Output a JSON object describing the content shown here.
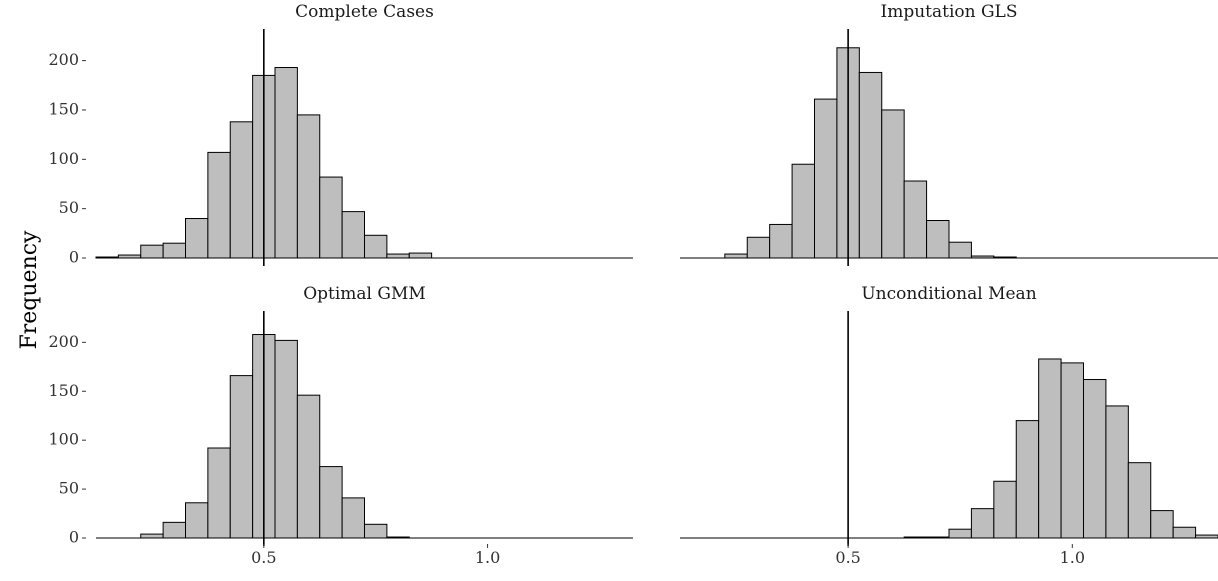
{
  "chart_data": {
    "type": "bar",
    "chart_kind": "histogram-facets",
    "ylabel": "Frequency",
    "x_ticks": [
      0.5,
      1.0
    ],
    "x_tick_labels": [
      "0.5",
      "1.0"
    ],
    "y_ticks": [
      0,
      50,
      100,
      150,
      200
    ],
    "y_tick_labels": [
      "0",
      "50",
      "100",
      "150",
      "200"
    ],
    "xlim": [
      0.125,
      1.325
    ],
    "ylim": [
      0,
      230
    ],
    "bin_width": 0.05,
    "reference_line_x": 0.5,
    "grid": false,
    "colors": {
      "bar_fill": "#bebebe",
      "bar_stroke": "#000000"
    },
    "panels": [
      {
        "title": "Complete Cases",
        "bin_centers": [
          0.15,
          0.2,
          0.25,
          0.3,
          0.35,
          0.4,
          0.45,
          0.5,
          0.55,
          0.6,
          0.65,
          0.7,
          0.75,
          0.8,
          0.85,
          0.9,
          0.95,
          1.0,
          1.05,
          1.1,
          1.15,
          1.2,
          1.25,
          1.3
        ],
        "values": [
          1,
          3,
          13,
          15,
          40,
          107,
          138,
          185,
          193,
          145,
          82,
          47,
          23,
          4,
          5,
          0,
          0,
          0,
          0,
          0,
          0,
          0,
          0,
          0
        ]
      },
      {
        "title": "Imputation GLS",
        "bin_centers": [
          0.15,
          0.2,
          0.25,
          0.3,
          0.35,
          0.4,
          0.45,
          0.5,
          0.55,
          0.6,
          0.65,
          0.7,
          0.75,
          0.8,
          0.85,
          0.9,
          0.95,
          1.0,
          1.05,
          1.1,
          1.15,
          1.2,
          1.25,
          1.3
        ],
        "values": [
          0,
          0,
          4,
          21,
          34,
          95,
          161,
          213,
          188,
          150,
          78,
          38,
          16,
          2,
          1,
          0,
          0,
          0,
          0,
          0,
          0,
          0,
          0,
          0
        ]
      },
      {
        "title": "Optimal GMM",
        "bin_centers": [
          0.15,
          0.2,
          0.25,
          0.3,
          0.35,
          0.4,
          0.45,
          0.5,
          0.55,
          0.6,
          0.65,
          0.7,
          0.75,
          0.8,
          0.85,
          0.9,
          0.95,
          1.0,
          1.05,
          1.1,
          1.15,
          1.2,
          1.25,
          1.3
        ],
        "values": [
          0,
          0,
          4,
          16,
          36,
          92,
          166,
          208,
          202,
          146,
          73,
          41,
          14,
          1,
          0,
          0,
          0,
          0,
          0,
          0,
          0,
          0,
          0,
          0
        ]
      },
      {
        "title": "Unconditional Mean",
        "bin_centers": [
          0.15,
          0.2,
          0.25,
          0.3,
          0.35,
          0.4,
          0.45,
          0.5,
          0.55,
          0.6,
          0.65,
          0.7,
          0.75,
          0.8,
          0.85,
          0.9,
          0.95,
          1.0,
          1.05,
          1.1,
          1.15,
          1.2,
          1.25,
          1.3
        ],
        "values": [
          0,
          0,
          0,
          0,
          0,
          0,
          0,
          0,
          0,
          0,
          1,
          1,
          9,
          30,
          58,
          120,
          183,
          179,
          162,
          135,
          77,
          28,
          11,
          3
        ]
      }
    ]
  }
}
